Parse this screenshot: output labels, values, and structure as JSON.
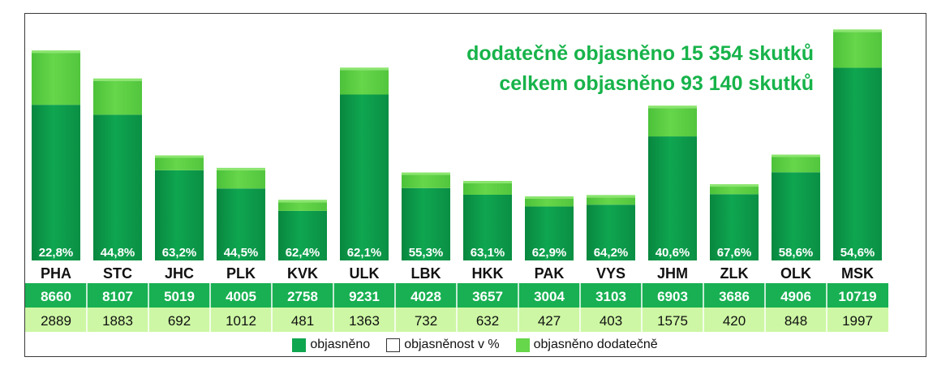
{
  "chart_data": {
    "type": "bar",
    "stacked": true,
    "categories": [
      "PHA",
      "STC",
      "JHC",
      "PLK",
      "KVK",
      "ULK",
      "LBK",
      "HKK",
      "PAK",
      "VYS",
      "JHM",
      "ZLK",
      "OLK",
      "MSK"
    ],
    "series": [
      {
        "name": "objasněno",
        "values": [
          8660,
          8107,
          5019,
          4005,
          2758,
          9231,
          4028,
          3657,
          3004,
          3103,
          6903,
          3686,
          4906,
          10719
        ],
        "color": "#0fa650"
      },
      {
        "name": "objasněno dodatečně",
        "values": [
          2889,
          1883,
          692,
          1012,
          481,
          1363,
          732,
          632,
          427,
          403,
          1575,
          420,
          848,
          1997
        ],
        "color": "#66d64a"
      }
    ],
    "percentages": [
      "22,8%",
      "44,8%",
      "63,2%",
      "44,5%",
      "62,4%",
      "62,1%",
      "55,3%",
      "63,1%",
      "62,9%",
      "64,2%",
      "40,6%",
      "67,6%",
      "58,6%",
      "54,6%"
    ],
    "ylim": [
      0,
      13000
    ],
    "grid": false,
    "legend_position": "bottom",
    "legend": [
      "objasněno",
      "objasněnost v %",
      "objasněno dodatečně"
    ],
    "table_row_colors": {
      "objasneno": "#18b052",
      "dodatecne": "#cdf7a4"
    },
    "annotations": [
      "dodatečně objasněno 15 354 skutků",
      "celkem objasněno 93 140 skutků"
    ],
    "annotation_color": "#17b34a"
  }
}
